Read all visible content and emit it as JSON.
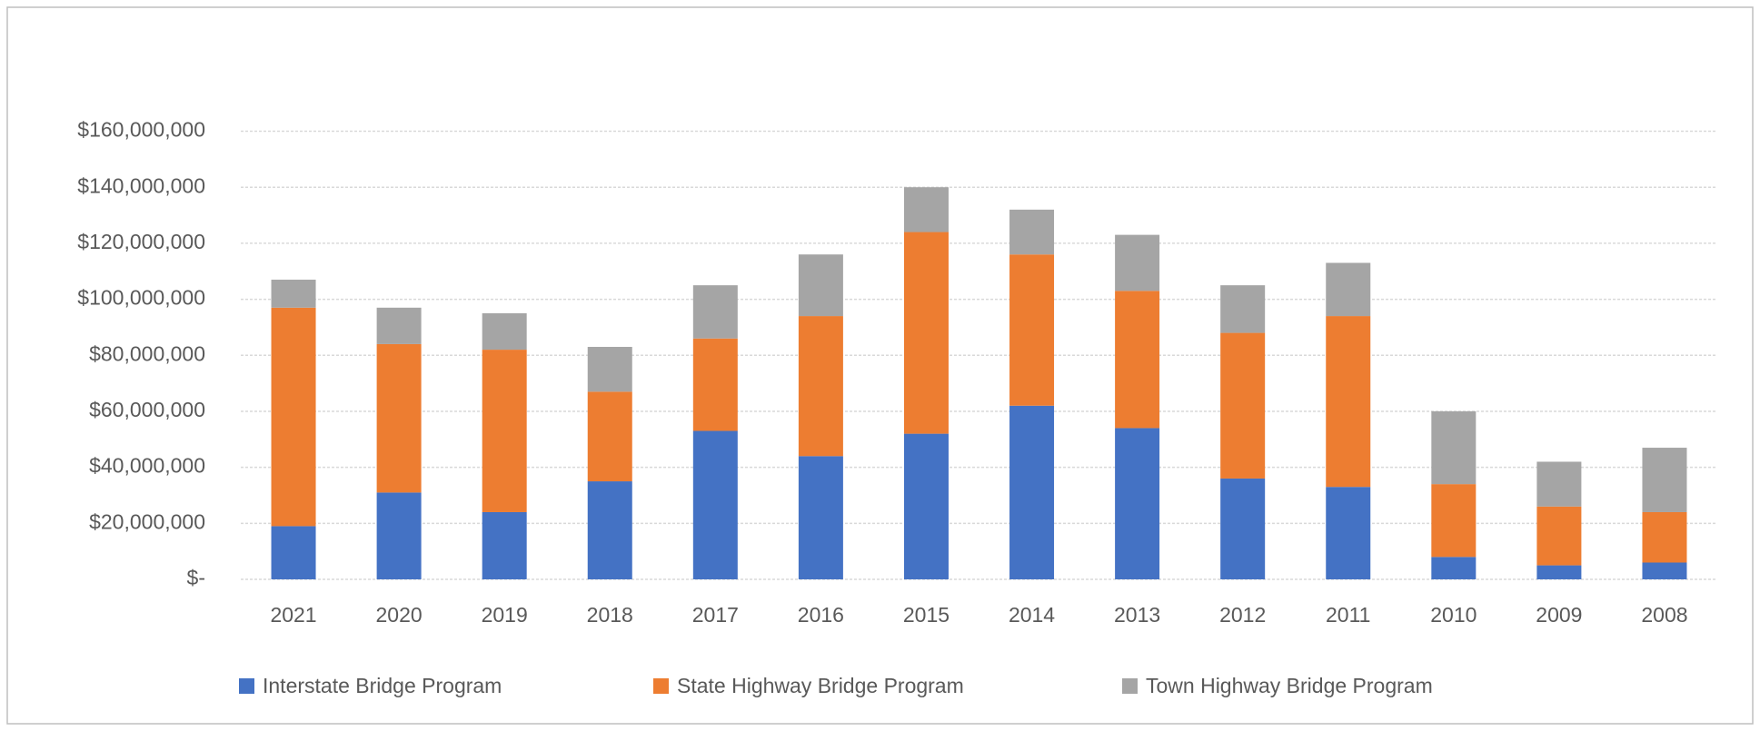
{
  "chart_data": {
    "type": "stacked_bar",
    "categories": [
      "2021",
      "2020",
      "2019",
      "2018",
      "2017",
      "2016",
      "2015",
      "2014",
      "2013",
      "2012",
      "2011",
      "2010",
      "2009",
      "2008"
    ],
    "series": [
      {
        "name": "Interstate Bridge Program",
        "color": "#4472c4",
        "values": [
          19000000,
          31000000,
          24000000,
          35000000,
          53000000,
          44000000,
          52000000,
          62000000,
          54000000,
          36000000,
          33000000,
          8000000,
          5000000,
          6000000
        ]
      },
      {
        "name": "State Highway Bridge Program",
        "color": "#ed7d31",
        "values": [
          78000000,
          53000000,
          58000000,
          32000000,
          33000000,
          50000000,
          72000000,
          54000000,
          49000000,
          52000000,
          61000000,
          26000000,
          21000000,
          18000000
        ]
      },
      {
        "name": "Town Highway Bridge Program",
        "color": "#a5a5a5",
        "values": [
          10000000,
          13000000,
          13000000,
          16000000,
          19000000,
          22000000,
          16000000,
          16000000,
          20000000,
          17000000,
          19000000,
          26000000,
          16000000,
          23000000
        ]
      }
    ],
    "ylim": [
      0,
      160000000
    ],
    "yticks": [
      {
        "value": 0,
        "label": "$-"
      },
      {
        "value": 20000000,
        "label": "$20,000,000"
      },
      {
        "value": 40000000,
        "label": "$40,000,000"
      },
      {
        "value": 60000000,
        "label": "$60,000,000"
      },
      {
        "value": 80000000,
        "label": "$80,000,000"
      },
      {
        "value": 100000000,
        "label": "$100,000,000"
      },
      {
        "value": 120000000,
        "label": "$120,000,000"
      },
      {
        "value": 140000000,
        "label": "$140,000,000"
      },
      {
        "value": 160000000,
        "label": "$160,000,000"
      }
    ],
    "grid": true,
    "legend": "bottom"
  }
}
